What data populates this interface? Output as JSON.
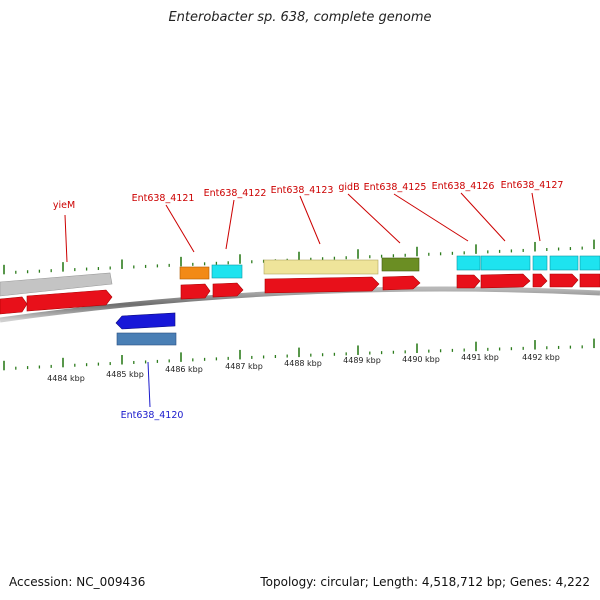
{
  "title": "Enterobacter sp. 638, complete genome",
  "footer": {
    "accession": "Accession: NC_009436",
    "topology": "Topology: circular; Length: 4,518,712 bp; Genes: 4,222"
  },
  "colors": {
    "cds": "#e8101a",
    "label_forward": "#cc0000",
    "label_reverse": "#1a1acc",
    "tick": "#2e7d1e",
    "backbone": "#7a7a7a"
  },
  "scale_ticks": [
    {
      "label": "4484 kbp"
    },
    {
      "label": "4485 kbp"
    },
    {
      "label": "4486 kbp"
    },
    {
      "label": "4487 kbp"
    },
    {
      "label": "4488 kbp"
    },
    {
      "label": "4489 kbp"
    },
    {
      "label": "4490 kbp"
    },
    {
      "label": "4491 kbp"
    },
    {
      "label": "4492 kbp"
    }
  ],
  "gene_labels": [
    {
      "text": "yieM",
      "strand": "forward"
    },
    {
      "text": "Ent638_4121",
      "strand": "forward"
    },
    {
      "text": "Ent638_4122",
      "strand": "forward"
    },
    {
      "text": "Ent638_4123",
      "strand": "forward"
    },
    {
      "text": "gidB",
      "strand": "forward"
    },
    {
      "text": "Ent638_4125",
      "strand": "forward"
    },
    {
      "text": "Ent638_4126",
      "strand": "forward"
    },
    {
      "text": "Ent638_4127",
      "strand": "forward"
    },
    {
      "text": "Ent638_4120",
      "strand": "reverse"
    }
  ]
}
